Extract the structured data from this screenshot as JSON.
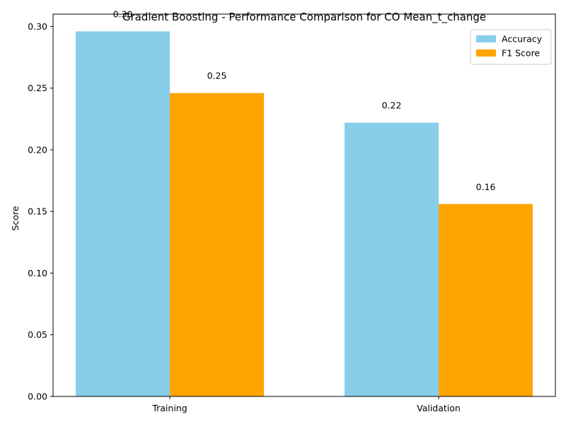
{
  "chart_data": {
    "type": "bar",
    "title": "Gradient Boosting - Performance Comparison for CO Mean_t_change",
    "xlabel": "",
    "ylabel": "Score",
    "categories": [
      "Training",
      "Validation"
    ],
    "series": [
      {
        "name": "Accuracy",
        "values": [
          0.296,
          0.222
        ],
        "labels": [
          "0.30",
          "0.22"
        ],
        "color": "#87ceeb"
      },
      {
        "name": "F1 Score",
        "values": [
          0.246,
          0.156
        ],
        "labels": [
          "0.25",
          "0.16"
        ],
        "color": "#ffa500"
      }
    ],
    "ylim": [
      0,
      0.31
    ],
    "yticks": [
      "0.00",
      "0.05",
      "0.10",
      "0.15",
      "0.20",
      "0.25",
      "0.30"
    ],
    "legend_position": "top-right",
    "grid": false
  }
}
